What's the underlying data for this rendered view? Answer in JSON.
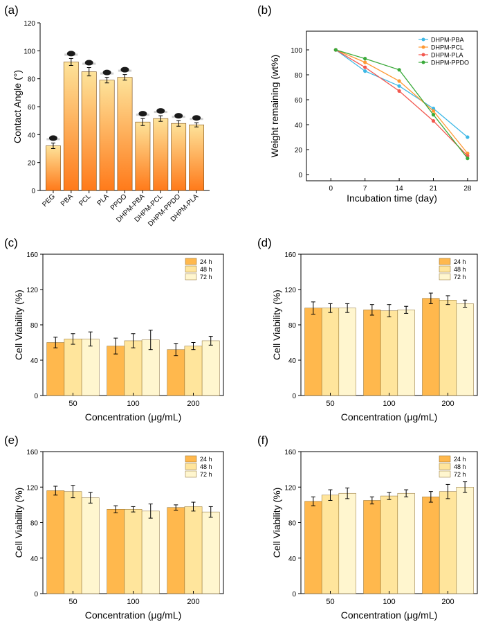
{
  "colors": {
    "bar_gradient_top": "#fde39a",
    "bar_gradient_bottom": "#ff7a1a",
    "series_24h": "#ffb84d",
    "series_48h": "#ffe59c",
    "series_72h": "#fff6cf",
    "line_pba": "#3db8e6",
    "line_pcl": "#ff9933",
    "line_pla": "#f2584f",
    "line_ppdo": "#3aaa3a",
    "droplet": "#1a1a1a"
  },
  "chart_data": [
    {
      "panel": "(a)",
      "type": "bar",
      "title": "",
      "xlabel": "",
      "ylabel": "Contact Angle (°)",
      "ylim": [
        0,
        120
      ],
      "yticks": [
        "0",
        "20",
        "40",
        "60",
        "80",
        "100",
        "120"
      ],
      "categories": [
        "PEG",
        "PBA",
        "PCL",
        "PLA",
        "PPDO",
        "DHPM-PBA",
        "DHPM-PCL",
        "DHPM-PPDO",
        "DHPM-PLA"
      ],
      "values": [
        32,
        92,
        85,
        79,
        81,
        49,
        51.5,
        48,
        47
      ],
      "errors": [
        2,
        2.5,
        3,
        2,
        2,
        2.5,
        2,
        2,
        1.5
      ]
    },
    {
      "panel": "(b)",
      "type": "line",
      "xlabel": "Incubation time (day)",
      "ylabel": "Weight remaining (wt%)",
      "xlim": [
        -5,
        30
      ],
      "ylim": [
        -5,
        115
      ],
      "xticks": [
        "0",
        "7",
        "14",
        "21",
        "28"
      ],
      "yticks": [
        "0",
        "20",
        "40",
        "60",
        "80",
        "100"
      ],
      "x": [
        1,
        7,
        14,
        21,
        28
      ],
      "legend": "top-right",
      "series": [
        {
          "name": "DHPM-PBA",
          "values": [
            100,
            83,
            71,
            53,
            30
          ]
        },
        {
          "name": "DHPM-PCL",
          "values": [
            100,
            90,
            75,
            51,
            17
          ]
        },
        {
          "name": "DHPM-PLA",
          "values": [
            100,
            86,
            67,
            43,
            15
          ]
        },
        {
          "name": "DHPM-PPDO",
          "values": [
            100,
            93,
            84,
            48,
            13
          ]
        }
      ]
    },
    {
      "panel": "(c)",
      "type": "bar",
      "xlabel": "Concentration (μg/mL)",
      "ylabel": "Cell Viability (%)",
      "ylim": [
        0,
        160
      ],
      "yticks": [
        "0",
        "40",
        "80",
        "120",
        "160"
      ],
      "categories": [
        "50",
        "100",
        "200"
      ],
      "legend": "top-right",
      "series": [
        {
          "name": "24 h",
          "values": [
            60,
            56,
            52
          ],
          "errors": [
            6,
            9,
            7
          ]
        },
        {
          "name": "48 h",
          "values": [
            64,
            62,
            56
          ],
          "errors": [
            6,
            8,
            4
          ]
        },
        {
          "name": "72 h",
          "values": [
            64,
            63,
            62
          ],
          "errors": [
            8,
            11,
            5
          ]
        }
      ]
    },
    {
      "panel": "(d)",
      "type": "bar",
      "xlabel": "Concentration (μg/mL)",
      "ylabel": "Cell Viability (%)",
      "ylim": [
        0,
        160
      ],
      "yticks": [
        "0",
        "40",
        "80",
        "120",
        "160"
      ],
      "categories": [
        "50",
        "100",
        "200"
      ],
      "legend": "top-right",
      "series": [
        {
          "name": "24 h",
          "values": [
            99,
            97,
            110
          ],
          "errors": [
            7,
            6,
            6
          ]
        },
        {
          "name": "48 h",
          "values": [
            99,
            96,
            108
          ],
          "errors": [
            5,
            7,
            5
          ]
        },
        {
          "name": "72 h",
          "values": [
            99,
            97,
            104
          ],
          "errors": [
            5,
            4,
            4
          ]
        }
      ]
    },
    {
      "panel": "(e)",
      "type": "bar",
      "xlabel": "Concentration (μg/mL)",
      "ylabel": "Cell Viability (%)",
      "ylim": [
        0,
        160
      ],
      "yticks": [
        "0",
        "40",
        "80",
        "120",
        "160"
      ],
      "categories": [
        "50",
        "100",
        "200"
      ],
      "legend": "top-right",
      "series": [
        {
          "name": "24 h",
          "values": [
            116,
            95,
            97
          ],
          "errors": [
            5,
            4,
            3
          ]
        },
        {
          "name": "48 h",
          "values": [
            115,
            95,
            98
          ],
          "errors": [
            7,
            3,
            5
          ]
        },
        {
          "name": "72 h",
          "values": [
            108,
            93,
            92
          ],
          "errors": [
            6,
            8,
            6
          ]
        }
      ]
    },
    {
      "panel": "(f)",
      "type": "bar",
      "xlabel": "Concentration (μg/mL)",
      "ylabel": "Cell Viability (%)",
      "ylim": [
        0,
        160
      ],
      "yticks": [
        "0",
        "40",
        "80",
        "120",
        "160"
      ],
      "categories": [
        "50",
        "100",
        "200"
      ],
      "legend": "top-right",
      "series": [
        {
          "name": "24 h",
          "values": [
            104,
            105,
            109
          ],
          "errors": [
            5,
            4,
            6
          ]
        },
        {
          "name": "48 h",
          "values": [
            111,
            110,
            115
          ],
          "errors": [
            6,
            4,
            8
          ]
        },
        {
          "name": "72 h",
          "values": [
            113,
            113,
            120
          ],
          "errors": [
            6,
            4,
            6
          ]
        }
      ]
    }
  ]
}
